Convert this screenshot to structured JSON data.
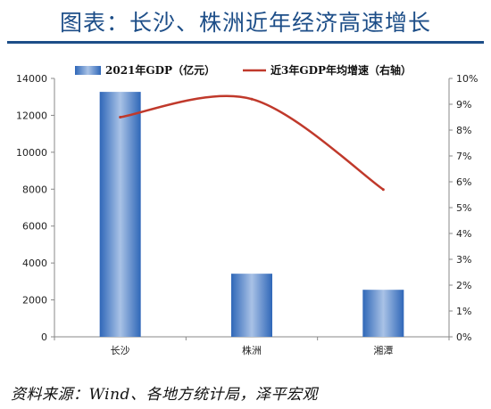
{
  "figure_title": "图表：长沙、株洲近年经济高速增长",
  "source": "资料来源：Wind、各地方统计局，泽平宏观",
  "colors": {
    "title": "#1d4e88",
    "bar": "#3d78c6",
    "line": "#c0392b"
  },
  "chart_data": {
    "type": "bar",
    "categories": [
      "长沙",
      "株洲",
      "湘潭"
    ],
    "series": [
      {
        "name": "2021年GDP（亿元）",
        "type": "bar",
        "axis": "left",
        "values": [
          13271,
          3420,
          2549
        ]
      },
      {
        "name": "近3年GDP年均增速（右轴）",
        "type": "line",
        "axis": "right",
        "values": [
          8.5,
          9.2,
          5.7
        ]
      }
    ],
    "y_left": {
      "min": 0,
      "max": 14000,
      "ticks": [
        0,
        2000,
        4000,
        6000,
        8000,
        10000,
        12000,
        14000
      ]
    },
    "y_right": {
      "min": 0,
      "max": 10,
      "ticks": [
        "0%",
        "1%",
        "2%",
        "3%",
        "4%",
        "5%",
        "6%",
        "7%",
        "8%",
        "9%",
        "10%"
      ]
    },
    "legend": "top",
    "grid": false
  }
}
